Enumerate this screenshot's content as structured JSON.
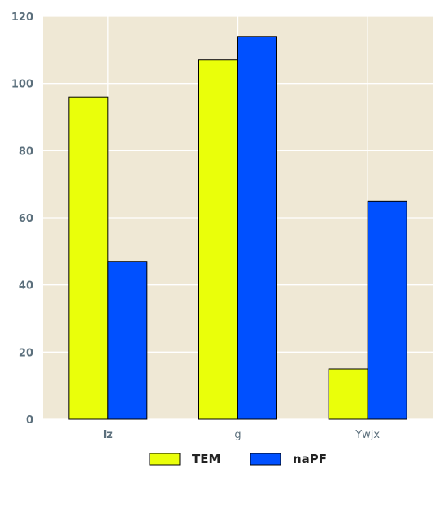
{
  "chart_data": {
    "type": "bar",
    "categories": [
      "lz",
      "g",
      "Ywjx"
    ],
    "series": [
      {
        "name": "TEM",
        "values": [
          96,
          107,
          15
        ],
        "color": "#eaff0a"
      },
      {
        "name": "naPF",
        "values": [
          47,
          114,
          65
        ],
        "color": "#0050ff"
      }
    ],
    "ylim": [
      0,
      120
    ],
    "yticks": [
      0,
      20,
      40,
      60,
      80,
      100,
      120
    ],
    "grid": true,
    "legend": "bottom-center",
    "background": "#efe8d5",
    "grid_color": "#ffffff",
    "tick_color": "#5b6f7c"
  }
}
